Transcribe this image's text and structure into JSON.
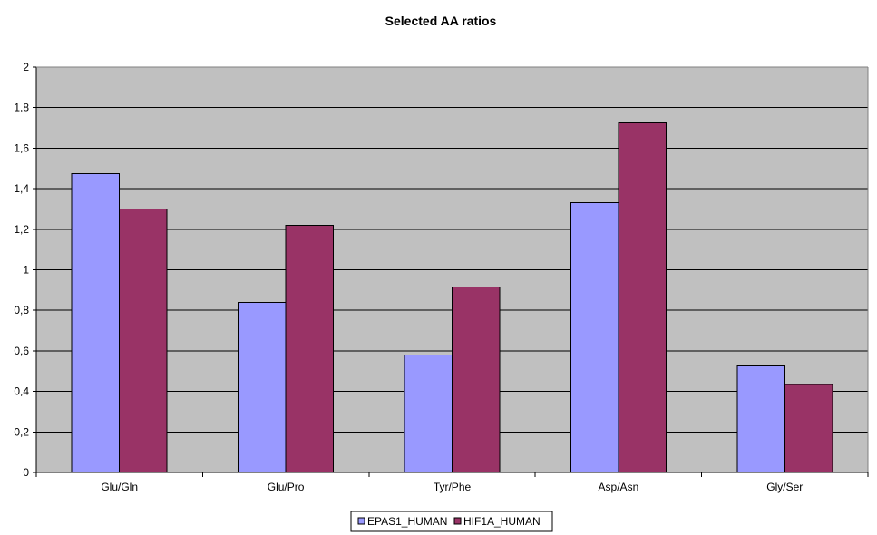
{
  "chart_data": {
    "type": "bar",
    "title": "Selected AA ratios",
    "xlabel": "",
    "ylabel": "",
    "categories": [
      "Glu/Gln",
      "Glu/Pro",
      "Tyr/Phe",
      "Asp/Asn",
      "Gly/Ser"
    ],
    "series": [
      {
        "name": "EPAS1_HUMAN",
        "values": [
          1.475,
          0.84,
          0.58,
          1.33,
          0.525
        ],
        "color": "#9999ff"
      },
      {
        "name": "HIF1A_HUMAN",
        "values": [
          1.3,
          1.22,
          0.915,
          1.725,
          0.435
        ],
        "color": "#993366"
      }
    ],
    "ylim": [
      0,
      2
    ],
    "yticks": [
      0,
      0.2,
      0.4,
      0.6,
      0.8,
      1,
      1.2,
      1.4,
      1.6,
      1.8,
      2
    ],
    "ytick_labels": [
      "0",
      "0,2",
      "0,4",
      "0,6",
      "0,8",
      "1",
      "1,2",
      "1,4",
      "1,6",
      "1,8",
      "2"
    ],
    "grid": true,
    "plot_background": "#c0c0c0",
    "legend_position": "bottom"
  }
}
